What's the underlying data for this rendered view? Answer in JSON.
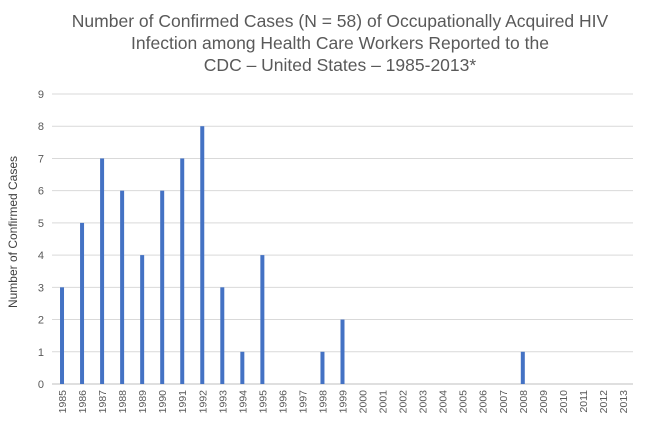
{
  "chart_data": {
    "type": "bar",
    "title_lines": [
      "Number of Confirmed Cases (N = 58) of Occupationally Acquired HIV",
      "Infection among Health Care Workers Reported to the",
      "CDC – United States – 1985-2013*"
    ],
    "xlabel": "",
    "ylabel": "Number of Confirmed Cases",
    "ylim": [
      0,
      9
    ],
    "yticks": [
      0,
      1,
      2,
      3,
      4,
      5,
      6,
      7,
      8,
      9
    ],
    "grid": true,
    "bar_color": "#4472C4",
    "categories": [
      "1985",
      "1986",
      "1987",
      "1988",
      "1989",
      "1990",
      "1991",
      "1992",
      "1993",
      "1994",
      "1995",
      "1996",
      "1997",
      "1998",
      "1999",
      "2000",
      "2001",
      "2002",
      "2003",
      "2004",
      "2005",
      "2006",
      "2007",
      "2008",
      "2009",
      "2010",
      "2011",
      "2012",
      "2013"
    ],
    "values": [
      3,
      5,
      7,
      6,
      4,
      6,
      7,
      8,
      3,
      1,
      4,
      0,
      0,
      1,
      2,
      0,
      0,
      0,
      0,
      0,
      0,
      0,
      0,
      1,
      0,
      0,
      0,
      0,
      0
    ]
  }
}
